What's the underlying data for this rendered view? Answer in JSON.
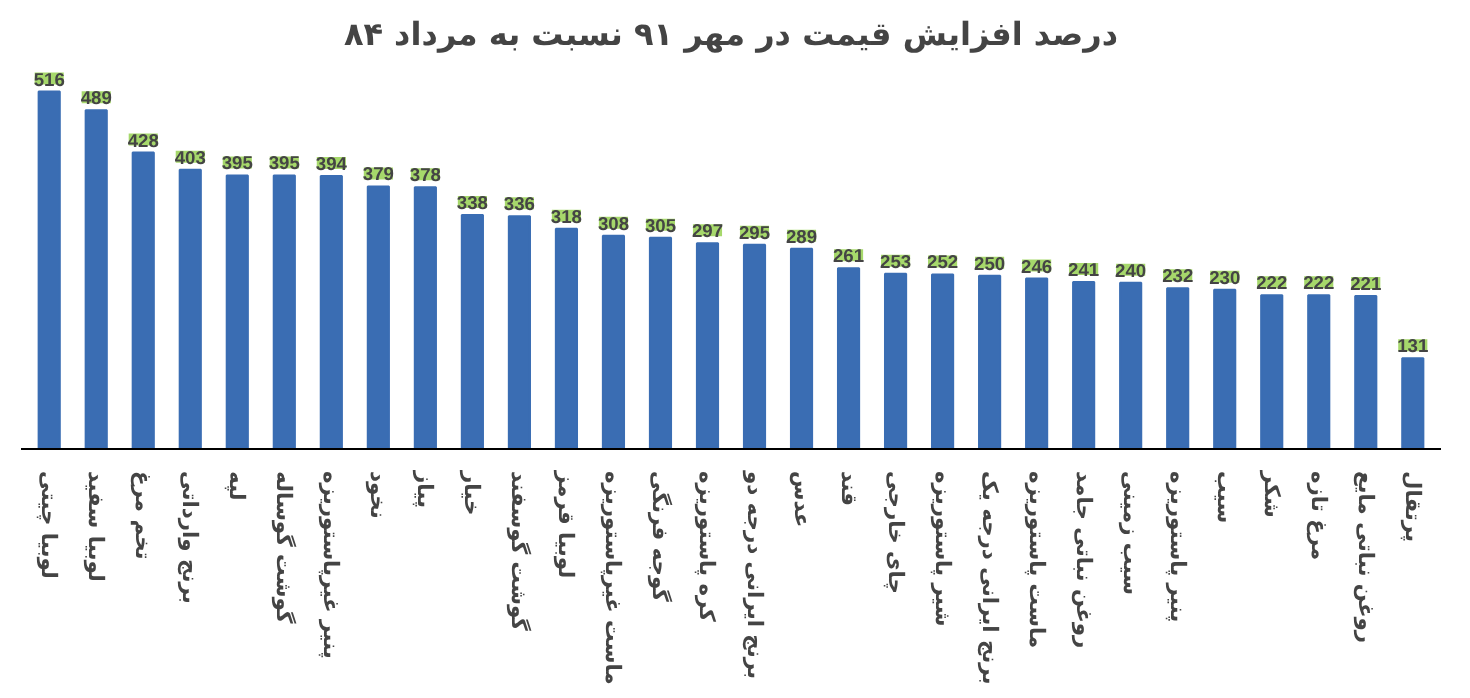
{
  "chart_data": {
    "type": "bar",
    "title": "درصد افزایش قیمت در مهر ۹۱ نسبت به مرداد ۸۴",
    "categories": [
      "لوبیا چیتی",
      "لوبیا سفید",
      "تخم مرغ",
      "برنج وارداتی",
      "لپه",
      "گوشت گوساله",
      "پنیر غیرپاستوریزه",
      "نخود",
      "پیاز",
      "خیار",
      "گوشت گوسفند",
      "لوبیا قرمز",
      "ماست غیرپاستوریزه",
      "گوجه فرنگی",
      "کره پاستوریزه",
      "برنج ایرانی درجه دو",
      "عدس",
      "قند",
      "چای خارجی",
      "شیر پاستوریزه",
      "برنج ایرانی درجه یک",
      "ماست پاستوریزه",
      "روغن نباتی جامد",
      "سیب زمینی",
      "پنیر پاستوریزه",
      "سیب",
      "شکر",
      "مرغ تازه",
      "روغن نباتی مایع",
      "پرتقال"
    ],
    "values": [
      516,
      489,
      428,
      403,
      395,
      395,
      394,
      379,
      378,
      338,
      336,
      318,
      308,
      305,
      297,
      295,
      289,
      261,
      253,
      252,
      250,
      246,
      241,
      240,
      232,
      230,
      222,
      222,
      221,
      131
    ],
    "color": "#3a6db3",
    "data_labels": true,
    "tick_labels": "x",
    "grid": false
  }
}
